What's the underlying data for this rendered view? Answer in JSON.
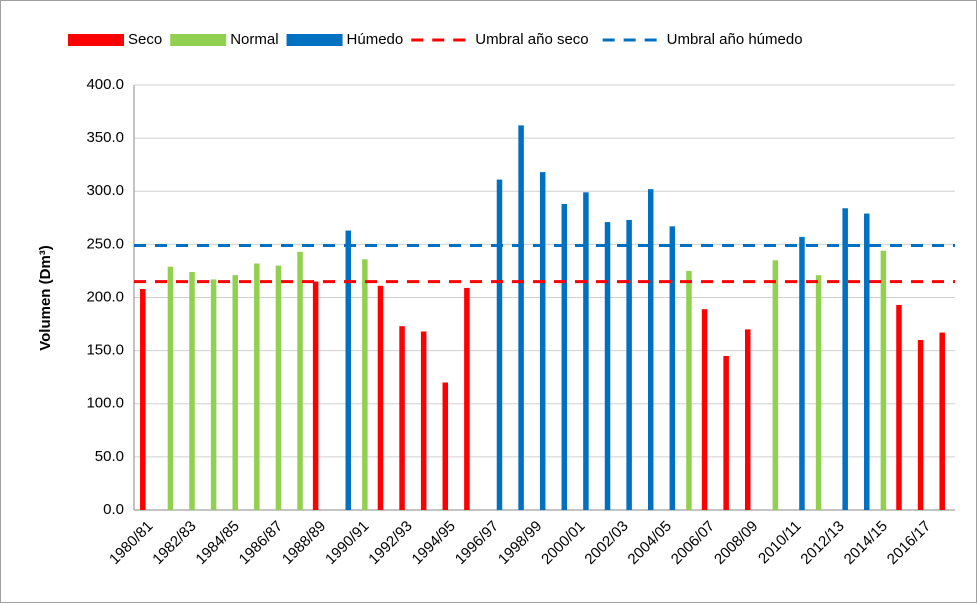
{
  "chart_data": {
    "type": "bar",
    "y_label": "Volumen (Dm³)",
    "categories": [
      "1980/81",
      null,
      "1982/83",
      null,
      "1984/85",
      null,
      "1986/87",
      null,
      "1988/89",
      null,
      "1990/91",
      null,
      "1992/93",
      null,
      "1994/95",
      null,
      "1996/97",
      null,
      "1998/99",
      null,
      "2000/01",
      null,
      "2002/03",
      null,
      "2004/05",
      null,
      "2006/07",
      null,
      "2008/09",
      null,
      "2010/11",
      null,
      "2012/13",
      null,
      "2014/15",
      null,
      "2016/17",
      null
    ],
    "series": [
      {
        "name": "Seco",
        "color": "#ff0000",
        "values": [
          208,
          null,
          null,
          null,
          null,
          null,
          null,
          null,
          215,
          null,
          null,
          211,
          173,
          168,
          120,
          209,
          null,
          null,
          null,
          null,
          null,
          null,
          null,
          null,
          null,
          null,
          189,
          145,
          170,
          null,
          null,
          null,
          null,
          null,
          null,
          193,
          160,
          167
        ]
      },
      {
        "name": "Normal",
        "color": "#92d050",
        "values": [
          null,
          229,
          224,
          217,
          221,
          232,
          230,
          243,
          null,
          null,
          236,
          null,
          null,
          null,
          null,
          null,
          null,
          null,
          null,
          null,
          null,
          null,
          null,
          null,
          null,
          225,
          null,
          null,
          null,
          235,
          null,
          221,
          null,
          null,
          244,
          null,
          null,
          null
        ]
      },
      {
        "name": "Húmedo",
        "color": "#0070c0",
        "values": [
          null,
          null,
          null,
          null,
          null,
          null,
          null,
          null,
          null,
          263,
          null,
          null,
          null,
          null,
          null,
          null,
          311,
          362,
          318,
          288,
          299,
          271,
          273,
          302,
          267,
          null,
          null,
          null,
          null,
          null,
          257,
          null,
          284,
          279,
          null,
          null,
          null,
          null
        ]
      }
    ],
    "thresholds": [
      {
        "name": "Umbral año seco",
        "color": "#ff0000",
        "value": 215
      },
      {
        "name": "Umbral año húmedo",
        "color": "#0070c0",
        "value": 249
      }
    ],
    "ylim": [
      0,
      400
    ],
    "yticks": [
      {
        "value": 0,
        "label": "0.0"
      },
      {
        "value": 50,
        "label": "50.0"
      },
      {
        "value": 100,
        "label": "100.0"
      },
      {
        "value": 150,
        "label": "150.0"
      },
      {
        "value": 200,
        "label": "200.0"
      },
      {
        "value": 250,
        "label": "250.0"
      },
      {
        "value": 300,
        "label": "300.0"
      },
      {
        "value": 350,
        "label": "350.0"
      },
      {
        "value": 400,
        "label": "400.0"
      }
    ],
    "grid": true,
    "legend": "top"
  }
}
